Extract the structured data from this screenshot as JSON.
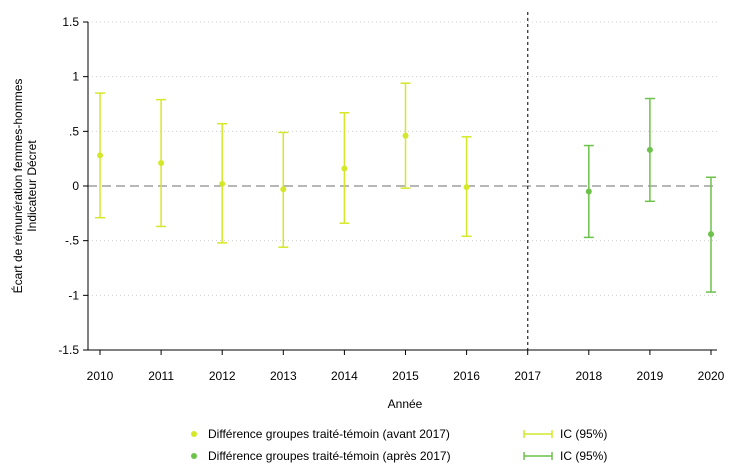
{
  "chart_data": {
    "type": "scatter",
    "title": "",
    "xlabel": "Année",
    "ylabel_lines": [
      "Écart de rémunération femmes-hommes",
      "Indicateur Décret"
    ],
    "x_categories": [
      "2010",
      "2011",
      "2012",
      "2013",
      "2014",
      "2015",
      "2016",
      "2017",
      "2018",
      "2019",
      "2020"
    ],
    "ylim": [
      -1.5,
      1.5
    ],
    "y_ticks": [
      {
        "value": 1.5,
        "label": "1.5"
      },
      {
        "value": 1,
        "label": "1"
      },
      {
        "value": 0.5,
        "label": ".5"
      },
      {
        "value": 0,
        "label": "0"
      },
      {
        "value": -0.5,
        "label": "-.5"
      },
      {
        "value": -1,
        "label": "-1"
      },
      {
        "value": -1.5,
        "label": "-1.5"
      }
    ],
    "grid": "horizontal dotted",
    "reference_lines": {
      "horizontal_at": 0,
      "vertical_at": "2017"
    },
    "legend_position": "bottom",
    "series": [
      {
        "name": "Différence groupes traité-témoin (avant 2017)",
        "ci_name": "IC (95%)",
        "color": "#d4e829",
        "points": [
          {
            "x": "2010",
            "y": 0.28,
            "lo": -0.29,
            "hi": 0.85
          },
          {
            "x": "2011",
            "y": 0.21,
            "lo": -0.37,
            "hi": 0.79
          },
          {
            "x": "2012",
            "y": 0.02,
            "lo": -0.52,
            "hi": 0.57
          },
          {
            "x": "2013",
            "y": -0.03,
            "lo": -0.56,
            "hi": 0.49
          },
          {
            "x": "2014",
            "y": 0.16,
            "lo": -0.34,
            "hi": 0.67
          },
          {
            "x": "2015",
            "y": 0.46,
            "lo": -0.02,
            "hi": 0.94
          },
          {
            "x": "2016",
            "y": -0.01,
            "lo": -0.46,
            "hi": 0.45
          }
        ]
      },
      {
        "name": "Différence groupes traité-témoin (après 2017)",
        "ci_name": "IC (95%)",
        "color": "#6cc24a",
        "points": [
          {
            "x": "2018",
            "y": -0.05,
            "lo": -0.47,
            "hi": 0.37
          },
          {
            "x": "2019",
            "y": 0.33,
            "lo": -0.14,
            "hi": 0.8
          },
          {
            "x": "2020",
            "y": -0.44,
            "lo": -0.97,
            "hi": 0.08
          }
        ]
      }
    ]
  }
}
